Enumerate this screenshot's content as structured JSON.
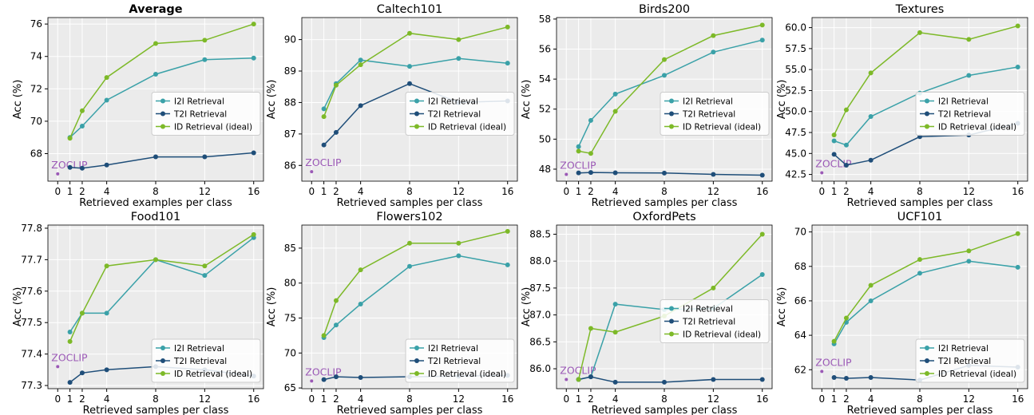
{
  "figure": {
    "zoclip_label": "ZOCLIP",
    "ylabel": "Acc (%)",
    "colors": {
      "I2I Retrieval": "#3aa1a8",
      "T2I Retrieval": "#1f4e79",
      "ID Retrieval (ideal)": "#7db928",
      "zoclip": "#9b59b6"
    }
  },
  "chart_data": [
    {
      "type": "line",
      "title": "Average",
      "title_bold": true,
      "xlabel": "Retrieved examples per class",
      "ylabel": "Acc (%)",
      "x": [
        1,
        2,
        4,
        8,
        12,
        16
      ],
      "xticks": [
        0,
        1,
        2,
        4,
        8,
        12,
        16
      ],
      "ylim": [
        66.3,
        76.4
      ],
      "yticks": [
        68,
        70,
        72,
        74,
        76
      ],
      "ytick_labels": [
        "68",
        "70",
        "72",
        "74",
        "76"
      ],
      "zoclip": 66.75,
      "legend": "center-right",
      "series": [
        {
          "name": "I2I Retrieval",
          "values": [
            69.0,
            69.7,
            71.3,
            72.9,
            73.8,
            73.9
          ]
        },
        {
          "name": "T2I Retrieval",
          "values": [
            67.15,
            67.1,
            67.3,
            67.8,
            67.8,
            68.05
          ]
        },
        {
          "name": "ID Retrieval (ideal)",
          "values": [
            68.95,
            70.65,
            72.7,
            74.8,
            75.0,
            76.0
          ]
        }
      ]
    },
    {
      "type": "line",
      "title": "Caltech101",
      "title_bold": false,
      "xlabel": "Retrieved samples per class",
      "ylabel": "Acc (%)",
      "x": [
        1,
        2,
        4,
        8,
        12,
        16
      ],
      "xticks": [
        0,
        1,
        2,
        4,
        8,
        12,
        16
      ],
      "ylim": [
        85.5,
        90.7
      ],
      "yticks": [
        86,
        87,
        88,
        89,
        90
      ],
      "ytick_labels": [
        "86",
        "87",
        "88",
        "89",
        "90"
      ],
      "zoclip": 85.8,
      "legend": "center-right",
      "series": [
        {
          "name": "I2I Retrieval",
          "values": [
            87.8,
            88.6,
            89.35,
            89.15,
            89.4,
            89.25
          ]
        },
        {
          "name": "T2I Retrieval",
          "values": [
            86.65,
            87.05,
            87.9,
            88.6,
            88.0,
            88.05
          ]
        },
        {
          "name": "ID Retrieval (ideal)",
          "values": [
            87.55,
            88.55,
            89.2,
            90.2,
            90.0,
            90.4
          ]
        }
      ]
    },
    {
      "type": "line",
      "title": "Birds200",
      "title_bold": false,
      "xlabel": "Retrieved samples per class",
      "ylabel": "Acc (%)",
      "x": [
        1,
        2,
        4,
        8,
        12,
        16
      ],
      "xticks": [
        0,
        1,
        2,
        4,
        8,
        12,
        16
      ],
      "ylim": [
        47.2,
        58.1
      ],
      "yticks": [
        48,
        50,
        52,
        54,
        56,
        58
      ],
      "ytick_labels": [
        "48",
        "50",
        "52",
        "54",
        "56",
        "58"
      ],
      "zoclip": 47.65,
      "legend": "center-right",
      "series": [
        {
          "name": "I2I Retrieval",
          "values": [
            49.5,
            51.25,
            53.0,
            54.25,
            55.8,
            56.6
          ]
        },
        {
          "name": "T2I Retrieval",
          "values": [
            47.75,
            47.78,
            47.76,
            47.74,
            47.65,
            47.6
          ]
        },
        {
          "name": "ID Retrieval (ideal)",
          "values": [
            49.2,
            49.05,
            51.85,
            55.3,
            56.9,
            57.6
          ]
        }
      ]
    },
    {
      "type": "line",
      "title": "Textures",
      "title_bold": false,
      "xlabel": "Retrieved samples per class",
      "ylabel": "Acc (%)",
      "x": [
        1,
        2,
        4,
        8,
        12,
        16
      ],
      "xticks": [
        0,
        1,
        2,
        4,
        8,
        12,
        16
      ],
      "ylim": [
        41.7,
        61.2
      ],
      "yticks": [
        42.5,
        45.0,
        47.5,
        50.0,
        52.5,
        55.0,
        57.5,
        60.0
      ],
      "ytick_labels": [
        "42.5",
        "45.0",
        "47.5",
        "50.0",
        "52.5",
        "55.0",
        "57.5",
        "60.0"
      ],
      "zoclip": 42.7,
      "legend": "center-right",
      "series": [
        {
          "name": "I2I Retrieval",
          "values": [
            46.5,
            46.0,
            49.4,
            52.2,
            54.3,
            55.3
          ]
        },
        {
          "name": "T2I Retrieval",
          "values": [
            44.9,
            43.6,
            44.2,
            47.0,
            47.2,
            48.6
          ]
        },
        {
          "name": "ID Retrieval (ideal)",
          "values": [
            47.2,
            50.2,
            54.6,
            59.4,
            58.6,
            60.2
          ]
        }
      ]
    },
    {
      "type": "line",
      "title": "Food101",
      "title_bold": false,
      "xlabel": "Retrieved samples per class",
      "ylabel": "Acc (%)",
      "x": [
        1,
        2,
        4,
        8,
        12,
        16
      ],
      "xticks": [
        0,
        1,
        2,
        4,
        8,
        12,
        16
      ],
      "ylim": [
        77.29,
        77.81
      ],
      "yticks": [
        77.3,
        77.4,
        77.5,
        77.6,
        77.7,
        77.8
      ],
      "ytick_labels": [
        "77.3",
        "77.4",
        "77.5",
        "77.6",
        "77.7",
        "77.8"
      ],
      "zoclip": 77.36,
      "legend": "lower-right",
      "series": [
        {
          "name": "I2I Retrieval",
          "values": [
            77.47,
            77.53,
            77.53,
            77.7,
            77.65,
            77.77
          ]
        },
        {
          "name": "T2I Retrieval",
          "values": [
            77.31,
            77.34,
            77.35,
            77.36,
            77.35,
            77.33
          ]
        },
        {
          "name": "ID Retrieval (ideal)",
          "values": [
            77.44,
            77.53,
            77.68,
            77.7,
            77.68,
            77.78
          ]
        }
      ]
    },
    {
      "type": "line",
      "title": "Flowers102",
      "title_bold": false,
      "xlabel": "Retrieved samples per class",
      "ylabel": "Acc (%)",
      "x": [
        1,
        2,
        4,
        8,
        12,
        16
      ],
      "xticks": [
        0,
        1,
        2,
        4,
        8,
        12,
        16
      ],
      "ylim": [
        64.9,
        88.3
      ],
      "yticks": [
        65,
        70,
        75,
        80,
        85
      ],
      "ytick_labels": [
        "65",
        "70",
        "75",
        "80",
        "85"
      ],
      "zoclip": 66.0,
      "legend": "lower-right",
      "series": [
        {
          "name": "I2I Retrieval",
          "values": [
            72.2,
            74.0,
            77.0,
            82.4,
            83.9,
            82.6
          ]
        },
        {
          "name": "T2I Retrieval",
          "values": [
            66.2,
            66.6,
            66.5,
            66.6,
            66.7,
            66.8
          ]
        },
        {
          "name": "ID Retrieval (ideal)",
          "values": [
            72.5,
            77.5,
            81.9,
            85.7,
            85.7,
            87.4
          ]
        }
      ]
    },
    {
      "type": "line",
      "title": "OxfordPets",
      "title_bold": false,
      "xlabel": "Retrieved samples per class",
      "ylabel": "Acc (%)",
      "x": [
        1,
        2,
        4,
        8,
        12,
        16
      ],
      "xticks": [
        0,
        1,
        2,
        4,
        8,
        12,
        16
      ],
      "ylim": [
        85.63,
        88.67
      ],
      "yticks": [
        86.0,
        86.5,
        87.0,
        87.5,
        88.0,
        88.5
      ],
      "ytick_labels": [
        "86.0",
        "86.5",
        "87.0",
        "87.5",
        "88.0",
        "88.5"
      ],
      "zoclip": 85.8,
      "legend": "center-right",
      "series": [
        {
          "name": "I2I Retrieval",
          "values": [
            85.8,
            85.85,
            87.2,
            87.1,
            87.12,
            87.75
          ]
        },
        {
          "name": "T2I Retrieval",
          "values": [
            85.8,
            85.85,
            85.75,
            85.75,
            85.8,
            85.8
          ]
        },
        {
          "name": "ID Retrieval (ideal)",
          "values": [
            85.8,
            86.75,
            86.68,
            86.98,
            87.5,
            88.5
          ]
        }
      ]
    },
    {
      "type": "line",
      "title": "UCF101",
      "title_bold": false,
      "xlabel": "Retrieved samples per class",
      "ylabel": "Acc (%)",
      "x": [
        1,
        2,
        4,
        8,
        12,
        16
      ],
      "xticks": [
        0,
        1,
        2,
        4,
        8,
        12,
        16
      ],
      "ylim": [
        60.9,
        70.4
      ],
      "yticks": [
        62,
        64,
        66,
        68,
        70
      ],
      "ytick_labels": [
        "62",
        "64",
        "66",
        "68",
        "70"
      ],
      "zoclip": 61.9,
      "legend": "lower-right",
      "series": [
        {
          "name": "I2I Retrieval",
          "values": [
            63.5,
            64.75,
            66.0,
            67.6,
            68.3,
            67.95
          ]
        },
        {
          "name": "T2I Retrieval",
          "values": [
            61.55,
            61.5,
            61.55,
            61.4,
            62.25,
            62.15
          ]
        },
        {
          "name": "ID Retrieval (ideal)",
          "values": [
            63.65,
            65.0,
            66.9,
            68.4,
            68.9,
            69.9
          ]
        }
      ]
    }
  ]
}
